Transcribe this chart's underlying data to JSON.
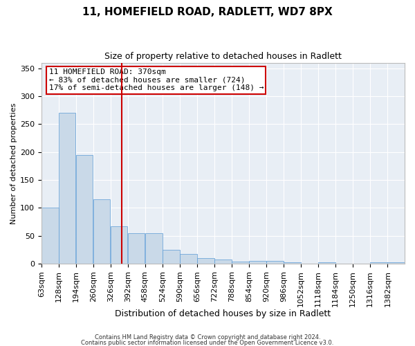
{
  "title_line1": "11, HOMEFIELD ROAD, RADLETT, WD7 8PX",
  "title_line2": "Size of property relative to detached houses in Radlett",
  "xlabel": "Distribution of detached houses by size in Radlett",
  "ylabel": "Number of detached properties",
  "bar_color": "#c9d9e8",
  "bar_edge_color": "#5b9bd5",
  "bg_color": "#e8eef5",
  "grid_color": "white",
  "annotation_box_color": "#cc0000",
  "vline_color": "#cc0000",
  "annotation_text": "11 HOMEFIELD ROAD: 370sqm\n← 83% of detached houses are smaller (724)\n17% of semi-detached houses are larger (148) →",
  "property_size_sqm": 370,
  "bin_edges": [
    63,
    128,
    194,
    260,
    326,
    392,
    458,
    524,
    590,
    656,
    722,
    788,
    854,
    920,
    986,
    1052,
    1118,
    1184,
    1250,
    1316,
    1382
  ],
  "bin_counts": [
    100,
    270,
    195,
    115,
    67,
    55,
    55,
    25,
    17,
    10,
    7,
    4,
    5,
    5,
    3,
    0,
    3,
    0,
    0,
    3,
    3
  ],
  "footer_text1": "Contains HM Land Registry data © Crown copyright and database right 2024.",
  "footer_text2": "Contains public sector information licensed under the Open Government Licence v3.0.",
  "ylim": [
    0,
    360
  ],
  "yticks": [
    0,
    50,
    100,
    150,
    200,
    250,
    300,
    350
  ],
  "title_fontsize": 11,
  "subtitle_fontsize": 9,
  "xlabel_fontsize": 9,
  "ylabel_fontsize": 8,
  "tick_fontsize": 8,
  "annotation_fontsize": 8,
  "footer_fontsize": 6
}
